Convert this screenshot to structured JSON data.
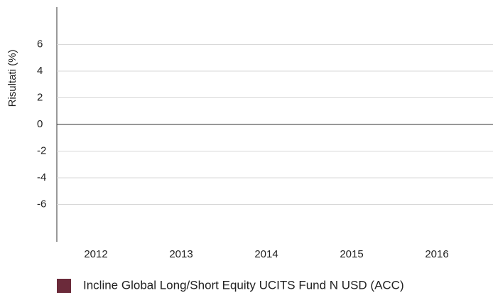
{
  "chart_data": {
    "type": "bar",
    "y_label": "Risultati (%)",
    "categories": [
      "2012",
      "2013",
      "2014",
      "2015",
      "2016"
    ],
    "series": [
      {
        "name": "Incline Global Long/Short Equity UCITS Fund N USD (ACC)",
        "color": "#6b2a3a",
        "values": [
          null,
          null,
          null,
          null,
          null
        ]
      }
    ],
    "ylim": [
      -8.8,
      8.8
    ],
    "yticks": [
      6,
      4,
      2,
      0,
      -2,
      -4,
      -6
    ],
    "grid": true
  }
}
